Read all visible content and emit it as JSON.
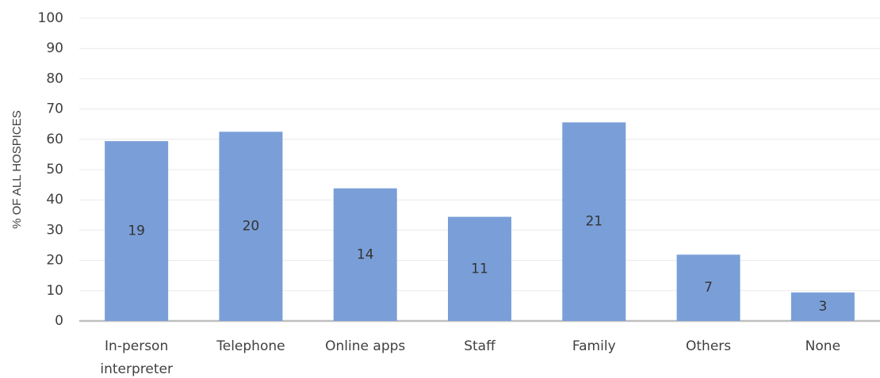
{
  "chart_data": {
    "type": "bar",
    "y_axis_label": "% OF ALL HOSPICES",
    "categories": [
      "In-person interpreter",
      "Telephone",
      "Online apps",
      "Staff",
      "Family",
      "Others",
      "None"
    ],
    "values": [
      59.4,
      62.5,
      43.8,
      34.4,
      65.6,
      21.9,
      9.4
    ],
    "counts": [
      19,
      20,
      14,
      11,
      21,
      7,
      3
    ],
    "color": "#7a9fd8",
    "ylim": [
      0,
      100
    ],
    "yticks": [
      0,
      10,
      20,
      30,
      40,
      50,
      60,
      70,
      80,
      90,
      100
    ],
    "grid": true
  }
}
